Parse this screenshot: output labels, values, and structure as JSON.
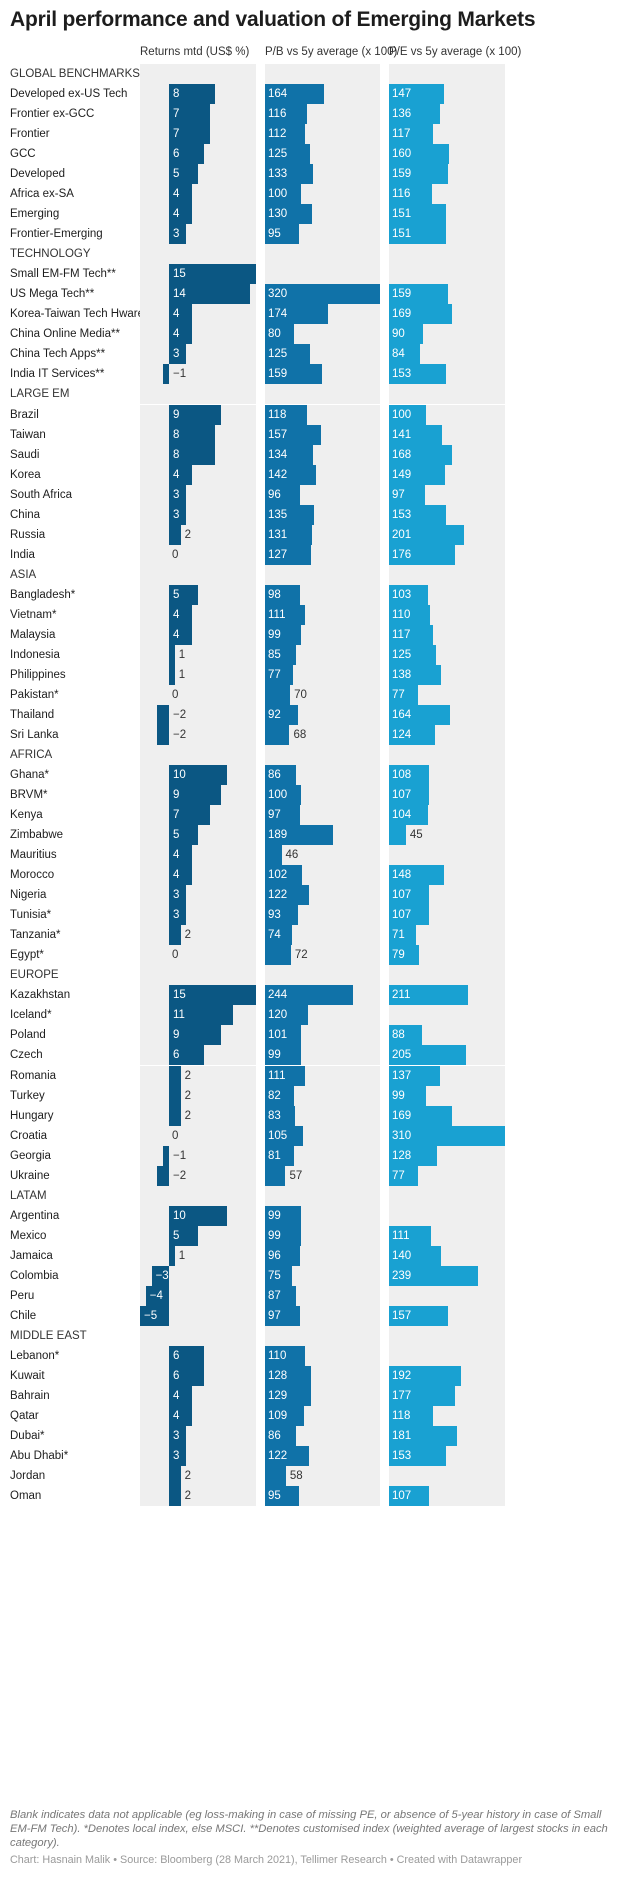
{
  "title": "April performance and valuation of Emerging Markets",
  "footnote": "Blank indicates data not applicable (eg loss-making in case of missing PE, or absence of 5-year history in case of Small EM-FM Tech). *Denotes local index, else MSCI. **Denotes customised index (weighted average of largest stocks in each category).",
  "credit": "Chart: Hasnain Malik • Source: Bloomberg (28 March 2021), Tellimer Research • Created with Datawrapper",
  "colors": {
    "returns": "#0b5783",
    "pb": "#1072a8",
    "pe": "#19a1d2",
    "track": "#efefef"
  },
  "chart_data": {
    "type": "bar",
    "title": "April performance and valuation of Emerging Markets",
    "columns": [
      {
        "key": "ret",
        "label": "Returns mtd (US$ %)",
        "min": -5,
        "max": 15
      },
      {
        "key": "pb",
        "label": "P/B vs 5y average (x 100)",
        "min": 0,
        "max": 320
      },
      {
        "key": "pe",
        "label": "P/E vs 5y average (x 100)",
        "min": 0,
        "max": 310
      }
    ],
    "rows": [
      {
        "label": "GLOBAL BENCHMARKS",
        "category": true
      },
      {
        "label": "Developed ex-US Tech",
        "ret": 8,
        "pb": 164,
        "pe": 147
      },
      {
        "label": "Frontier ex-GCC",
        "ret": 7,
        "pb": 116,
        "pe": 136
      },
      {
        "label": "Frontier",
        "ret": 7,
        "pb": 112,
        "pe": 117
      },
      {
        "label": "GCC",
        "ret": 6,
        "pb": 125,
        "pe": 160
      },
      {
        "label": "Developed",
        "ret": 5,
        "pb": 133,
        "pe": 159
      },
      {
        "label": "Africa ex-SA",
        "ret": 4,
        "pb": 100,
        "pe": 116
      },
      {
        "label": "Emerging",
        "ret": 4,
        "pb": 130,
        "pe": 151
      },
      {
        "label": "Frontier-Emerging",
        "ret": 3,
        "pb": 95,
        "pe": 151
      },
      {
        "label": "TECHNOLOGY",
        "category": true
      },
      {
        "label": "Small EM-FM Tech**",
        "ret": 15,
        "pb": null,
        "pe": null
      },
      {
        "label": "US Mega Tech**",
        "ret": 14,
        "pb": 320,
        "pe": 159
      },
      {
        "label": "Korea-Taiwan Tech Hware**",
        "ret": 4,
        "pb": 174,
        "pe": 169
      },
      {
        "label": "China Online Media**",
        "ret": 4,
        "pb": 80,
        "pe": 90
      },
      {
        "label": "China Tech Apps**",
        "ret": 3,
        "pb": 125,
        "pe": 84
      },
      {
        "label": "India IT Services**",
        "ret": -1,
        "pb": 159,
        "pe": 153
      },
      {
        "label": "LARGE EM",
        "category": true
      },
      {
        "label": "Brazil",
        "ret": 9,
        "pb": 118,
        "pe": 100
      },
      {
        "label": "Taiwan",
        "ret": 8,
        "pb": 157,
        "pe": 141
      },
      {
        "label": "Saudi",
        "ret": 8,
        "pb": 134,
        "pe": 168
      },
      {
        "label": "Korea",
        "ret": 4,
        "pb": 142,
        "pe": 149
      },
      {
        "label": "South Africa",
        "ret": 3,
        "pb": 96,
        "pe": 97
      },
      {
        "label": "China",
        "ret": 3,
        "pb": 135,
        "pe": 153
      },
      {
        "label": "Russia",
        "ret": 2,
        "pb": 131,
        "pe": 201
      },
      {
        "label": "India",
        "ret": 0,
        "pb": 127,
        "pe": 176
      },
      {
        "label": "ASIA",
        "category": true
      },
      {
        "label": "Bangladesh*",
        "ret": 5,
        "pb": 98,
        "pe": 103
      },
      {
        "label": "Vietnam*",
        "ret": 4,
        "pb": 111,
        "pe": 110
      },
      {
        "label": "Malaysia",
        "ret": 4,
        "pb": 99,
        "pe": 117
      },
      {
        "label": "Indonesia",
        "ret": 1,
        "pb": 85,
        "pe": 125
      },
      {
        "label": "Philippines",
        "ret": 1,
        "pb": 77,
        "pe": 138
      },
      {
        "label": "Pakistan*",
        "ret": 0,
        "pb": 70,
        "pe": 77
      },
      {
        "label": "Thailand",
        "ret": -2,
        "pb": 92,
        "pe": 164
      },
      {
        "label": "Sri Lanka",
        "ret": -2,
        "pb": 68,
        "pe": 124
      },
      {
        "label": "AFRICA",
        "category": true
      },
      {
        "label": "Ghana*",
        "ret": 10,
        "pb": 86,
        "pe": 108
      },
      {
        "label": "BRVM*",
        "ret": 9,
        "pb": 100,
        "pe": 107
      },
      {
        "label": "Kenya",
        "ret": 7,
        "pb": 97,
        "pe": 104
      },
      {
        "label": "Zimbabwe",
        "ret": 5,
        "pb": 189,
        "pe": 45
      },
      {
        "label": "Mauritius",
        "ret": 4,
        "pb": 46,
        "pe": null
      },
      {
        "label": "Morocco",
        "ret": 4,
        "pb": 102,
        "pe": 148
      },
      {
        "label": "Nigeria",
        "ret": 3,
        "pb": 122,
        "pe": 107
      },
      {
        "label": "Tunisia*",
        "ret": 3,
        "pb": 93,
        "pe": 107
      },
      {
        "label": "Tanzania*",
        "ret": 2,
        "pb": 74,
        "pe": 71
      },
      {
        "label": "Egypt*",
        "ret": 0,
        "pb": 72,
        "pe": 79
      },
      {
        "label": "EUROPE",
        "category": true
      },
      {
        "label": "Kazakhstan",
        "ret": 15,
        "pb": 244,
        "pe": 211
      },
      {
        "label": "Iceland*",
        "ret": 11,
        "pb": 120,
        "pe": null
      },
      {
        "label": "Poland",
        "ret": 9,
        "pb": 101,
        "pe": 88
      },
      {
        "label": "Czech",
        "ret": 6,
        "pb": 99,
        "pe": 205
      },
      {
        "label": "Romania",
        "ret": 2,
        "pb": 111,
        "pe": 137
      },
      {
        "label": "Turkey",
        "ret": 2,
        "pb": 82,
        "pe": 99
      },
      {
        "label": "Hungary",
        "ret": 2,
        "pb": 83,
        "pe": 169
      },
      {
        "label": "Croatia",
        "ret": 0,
        "pb": 105,
        "pe": 310
      },
      {
        "label": "Georgia",
        "ret": -1,
        "pb": 81,
        "pe": 128
      },
      {
        "label": "Ukraine",
        "ret": -2,
        "pb": 57,
        "pe": 77
      },
      {
        "label": "LATAM",
        "category": true
      },
      {
        "label": "Argentina",
        "ret": 10,
        "pb": 99,
        "pe": null
      },
      {
        "label": "Mexico",
        "ret": 5,
        "pb": 99,
        "pe": 111
      },
      {
        "label": "Jamaica",
        "ret": 1,
        "pb": 96,
        "pe": 140
      },
      {
        "label": "Colombia",
        "ret": -3,
        "pb": 75,
        "pe": 239
      },
      {
        "label": "Peru",
        "ret": -4,
        "pb": 87,
        "pe": null
      },
      {
        "label": "Chile",
        "ret": -5,
        "pb": 97,
        "pe": 157
      },
      {
        "label": "MIDDLE EAST",
        "category": true
      },
      {
        "label": "Lebanon*",
        "ret": 6,
        "pb": 110,
        "pe": null
      },
      {
        "label": "Kuwait",
        "ret": 6,
        "pb": 128,
        "pe": 192
      },
      {
        "label": "Bahrain",
        "ret": 4,
        "pb": 129,
        "pe": 177
      },
      {
        "label": "Qatar",
        "ret": 4,
        "pb": 109,
        "pe": 118
      },
      {
        "label": "Dubai*",
        "ret": 3,
        "pb": 86,
        "pe": 181
      },
      {
        "label": "Abu Dhabi*",
        "ret": 3,
        "pb": 122,
        "pe": 153
      },
      {
        "label": "Jordan",
        "ret": 2,
        "pb": 58,
        "pe": null
      },
      {
        "label": "Oman",
        "ret": 2,
        "pb": 95,
        "pe": 107
      }
    ]
  }
}
